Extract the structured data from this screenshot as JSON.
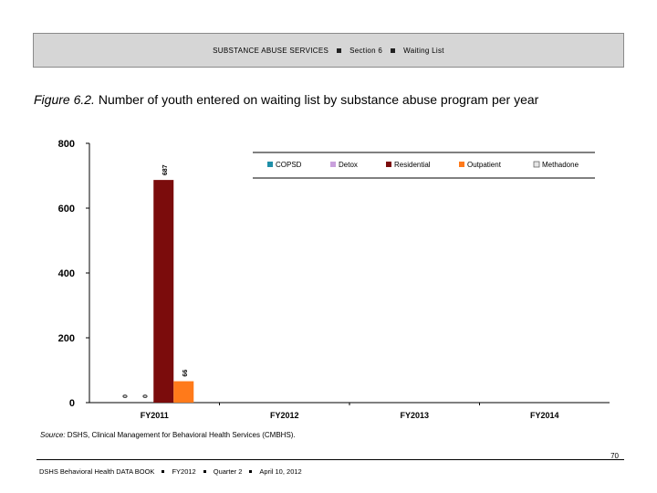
{
  "header": {
    "section": "SUBSTANCE ABUSE SERVICES",
    "section_num": "Section 6",
    "topic": "Waiting List"
  },
  "figure": {
    "number": "Figure 6.2.",
    "title": "Number of youth entered on waiting list by substance abuse program per year"
  },
  "chart_data": {
    "type": "bar",
    "categories": [
      "FY2011",
      "FY2012",
      "FY2013",
      "FY2014"
    ],
    "series": [
      {
        "name": "COPSD",
        "color": "#1f8fa8",
        "values": [
          0,
          null,
          null,
          null
        ]
      },
      {
        "name": "Detox",
        "color": "#c9a0dc",
        "values": [
          0,
          null,
          null,
          null
        ]
      },
      {
        "name": "Residential",
        "color": "#7b0c0c",
        "values": [
          687,
          null,
          null,
          null
        ]
      },
      {
        "name": "Outpatient",
        "color": "#ff7a1a",
        "values": [
          66,
          null,
          null,
          null
        ]
      },
      {
        "name": "Methadone",
        "color": "#e6e6e6",
        "values": [
          null,
          null,
          null,
          null
        ]
      }
    ],
    "data_labels": [
      {
        "category": "FY2011",
        "series": "COPSD",
        "label": "0"
      },
      {
        "category": "FY2011",
        "series": "Detox",
        "label": "0"
      },
      {
        "category": "FY2011",
        "series": "Residential",
        "label": "687"
      },
      {
        "category": "FY2011",
        "series": "Outpatient",
        "label": "66"
      }
    ],
    "yticks": [
      "0",
      "200",
      "400",
      "600",
      "800"
    ],
    "ylim": [
      0,
      800
    ],
    "grid": false,
    "legend_position": "top-right"
  },
  "source": {
    "label": "Source:",
    "text": " DSHS, Clinical Management for Behavioral Health Services (CMBHS)."
  },
  "footer": {
    "page_number": "70",
    "book": "DSHS Behavioral Health DATA BOOK",
    "year": "FY2012",
    "quarter": "Quarter 2",
    "date": "April 10, 2012"
  }
}
